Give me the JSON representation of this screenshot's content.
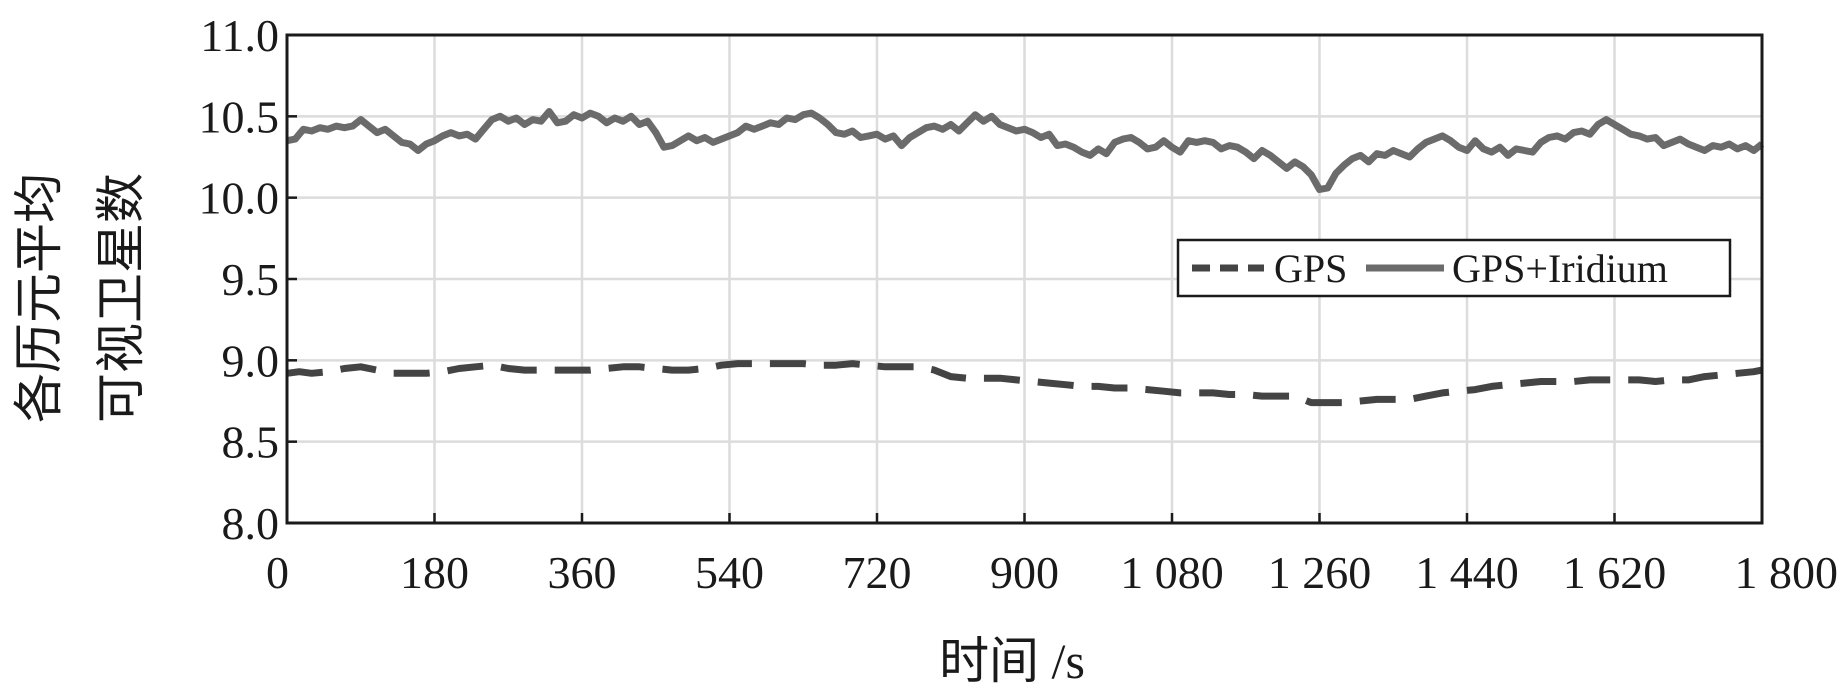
{
  "chart_data": {
    "type": "line",
    "title": "",
    "xlabel": "时间 /s",
    "ylabel_lines": [
      "各历元平均",
      "可视卫星数"
    ],
    "xlim": [
      0,
      1800
    ],
    "ylim": [
      8.0,
      11.0
    ],
    "x_ticks": [
      0,
      180,
      360,
      540,
      720,
      900,
      1080,
      1260,
      1440,
      1620,
      1800
    ],
    "x_tick_labels": [
      "0",
      "180",
      "360",
      "540",
      "720",
      "900",
      "1 080",
      "1 260",
      "1 440",
      "1 620",
      "1 800"
    ],
    "y_ticks": [
      8.0,
      8.5,
      9.0,
      9.5,
      10.0,
      10.5,
      11.0
    ],
    "y_tick_labels": [
      "8.0",
      "8.5",
      "9.0",
      "9.5",
      "10.0",
      "10.5",
      "11.0"
    ],
    "grid": true,
    "legend_position": "center-right",
    "series": [
      {
        "name": "GPS",
        "style": "dashed",
        "color": "#444444",
        "x": [
          0,
          15,
          30,
          50,
          70,
          90,
          110,
          130,
          150,
          170,
          190,
          210,
          230,
          250,
          270,
          290,
          310,
          330,
          350,
          370,
          390,
          410,
          430,
          450,
          470,
          490,
          510,
          530,
          550,
          570,
          590,
          610,
          630,
          650,
          670,
          690,
          710,
          730,
          750,
          770,
          790,
          810,
          830,
          850,
          870,
          890,
          910,
          930,
          950,
          970,
          990,
          1010,
          1030,
          1050,
          1070,
          1090,
          1110,
          1130,
          1150,
          1170,
          1190,
          1210,
          1230,
          1250,
          1270,
          1290,
          1310,
          1330,
          1350,
          1370,
          1390,
          1410,
          1430,
          1450,
          1470,
          1490,
          1510,
          1530,
          1550,
          1570,
          1590,
          1610,
          1630,
          1650,
          1670,
          1690,
          1710,
          1730,
          1750,
          1770,
          1790,
          1800
        ],
        "y": [
          8.92,
          8.93,
          8.92,
          8.93,
          8.95,
          8.96,
          8.94,
          8.92,
          8.92,
          8.92,
          8.93,
          8.95,
          8.96,
          8.97,
          8.95,
          8.94,
          8.94,
          8.94,
          8.94,
          8.94,
          8.95,
          8.96,
          8.96,
          8.95,
          8.94,
          8.94,
          8.95,
          8.97,
          8.98,
          8.98,
          8.98,
          8.98,
          8.98,
          8.97,
          8.97,
          8.98,
          8.97,
          8.96,
          8.96,
          8.96,
          8.94,
          8.9,
          8.89,
          8.89,
          8.89,
          8.88,
          8.87,
          8.86,
          8.85,
          8.84,
          8.84,
          8.83,
          8.83,
          8.82,
          8.81,
          8.8,
          8.8,
          8.8,
          8.79,
          8.79,
          8.78,
          8.78,
          8.78,
          8.74,
          8.74,
          8.74,
          8.75,
          8.76,
          8.76,
          8.76,
          8.78,
          8.8,
          8.81,
          8.82,
          8.84,
          8.85,
          8.86,
          8.87,
          8.87,
          8.87,
          8.88,
          8.88,
          8.88,
          8.88,
          8.87,
          8.88,
          8.88,
          8.9,
          8.91,
          8.92,
          8.93,
          8.94
        ]
      },
      {
        "name": "GPS+Iridium",
        "style": "solid",
        "color": "#6b6b6b",
        "x": [
          0,
          10,
          20,
          30,
          40,
          50,
          60,
          70,
          80,
          90,
          100,
          110,
          120,
          130,
          140,
          150,
          160,
          170,
          180,
          190,
          200,
          210,
          220,
          230,
          240,
          250,
          260,
          270,
          280,
          290,
          300,
          310,
          320,
          330,
          340,
          350,
          360,
          370,
          380,
          390,
          400,
          410,
          420,
          430,
          440,
          450,
          460,
          470,
          480,
          490,
          500,
          510,
          520,
          530,
          540,
          550,
          560,
          570,
          580,
          590,
          600,
          610,
          620,
          630,
          640,
          650,
          660,
          670,
          680,
          690,
          700,
          710,
          720,
          730,
          740,
          750,
          760,
          770,
          780,
          790,
          800,
          810,
          820,
          830,
          840,
          850,
          860,
          870,
          880,
          890,
          900,
          910,
          920,
          930,
          940,
          950,
          960,
          970,
          980,
          990,
          1000,
          1010,
          1020,
          1030,
          1040,
          1050,
          1060,
          1070,
          1080,
          1090,
          1100,
          1110,
          1120,
          1130,
          1140,
          1150,
          1160,
          1170,
          1180,
          1190,
          1200,
          1210,
          1220,
          1230,
          1240,
          1250,
          1260,
          1270,
          1280,
          1290,
          1300,
          1310,
          1320,
          1330,
          1340,
          1350,
          1360,
          1370,
          1380,
          1390,
          1400,
          1410,
          1420,
          1430,
          1440,
          1450,
          1460,
          1470,
          1480,
          1490,
          1500,
          1510,
          1520,
          1530,
          1540,
          1550,
          1560,
          1570,
          1580,
          1590,
          1600,
          1610,
          1620,
          1630,
          1640,
          1650,
          1660,
          1670,
          1680,
          1690,
          1700,
          1710,
          1720,
          1730,
          1740,
          1750,
          1760,
          1770,
          1780,
          1790,
          1800
        ],
        "y": [
          10.35,
          10.36,
          10.42,
          10.41,
          10.43,
          10.42,
          10.44,
          10.43,
          10.44,
          10.48,
          10.44,
          10.4,
          10.42,
          10.38,
          10.34,
          10.33,
          10.29,
          10.33,
          10.35,
          10.38,
          10.4,
          10.38,
          10.39,
          10.36,
          10.42,
          10.48,
          10.5,
          10.47,
          10.49,
          10.45,
          10.48,
          10.47,
          10.53,
          10.46,
          10.47,
          10.51,
          10.49,
          10.52,
          10.5,
          10.46,
          10.49,
          10.47,
          10.5,
          10.45,
          10.47,
          10.4,
          10.31,
          10.32,
          10.35,
          10.38,
          10.35,
          10.37,
          10.34,
          10.36,
          10.38,
          10.4,
          10.44,
          10.42,
          10.44,
          10.46,
          10.45,
          10.49,
          10.48,
          10.51,
          10.52,
          10.49,
          10.45,
          10.4,
          10.39,
          10.41,
          10.37,
          10.38,
          10.39,
          10.36,
          10.38,
          10.32,
          10.37,
          10.4,
          10.43,
          10.44,
          10.42,
          10.45,
          10.41,
          10.46,
          10.51,
          10.47,
          10.5,
          10.45,
          10.43,
          10.41,
          10.42,
          10.4,
          10.37,
          10.39,
          10.32,
          10.33,
          10.31,
          10.28,
          10.26,
          10.3,
          10.27,
          10.34,
          10.36,
          10.37,
          10.34,
          10.3,
          10.31,
          10.35,
          10.31,
          10.28,
          10.35,
          10.34,
          10.35,
          10.34,
          10.3,
          10.32,
          10.31,
          10.28,
          10.24,
          10.29,
          10.26,
          10.22,
          10.18,
          10.22,
          10.19,
          10.14,
          10.05,
          10.06,
          10.15,
          10.2,
          10.24,
          10.26,
          10.22,
          10.27,
          10.26,
          10.29,
          10.27,
          10.25,
          10.3,
          10.34,
          10.36,
          10.38,
          10.35,
          10.31,
          10.29,
          10.35,
          10.3,
          10.28,
          10.31,
          10.26,
          10.3,
          10.29,
          10.28,
          10.34,
          10.37,
          10.38,
          10.36,
          10.4,
          10.41,
          10.39,
          10.45,
          10.48,
          10.45,
          10.42,
          10.39,
          10.38,
          10.36,
          10.37,
          10.32,
          10.34,
          10.36,
          10.33,
          10.31,
          10.29,
          10.32,
          10.31,
          10.33,
          10.3,
          10.32,
          10.29,
          10.33
        ]
      }
    ]
  }
}
